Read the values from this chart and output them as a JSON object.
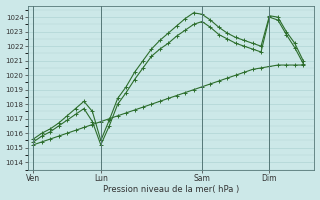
{
  "title": "",
  "xlabel": "Pression niveau de la mer( hPa )",
  "ylabel": "",
  "bg_color": "#cce8e8",
  "line_color": "#2d6e2d",
  "grid_color": "#b0d4d4",
  "ylim": [
    1013.5,
    1024.8
  ],
  "yticks": [
    1014,
    1015,
    1016,
    1017,
    1018,
    1019,
    1020,
    1021,
    1022,
    1023,
    1024
  ],
  "day_labels": [
    "Ven",
    "Lun",
    "Sam",
    "Dim"
  ],
  "day_positions": [
    0,
    48,
    120,
    168
  ],
  "xlim": [
    -4,
    200
  ],
  "lines": [
    {
      "x": [
        0,
        6,
        12,
        18,
        24,
        30,
        36,
        42,
        48,
        54,
        60,
        66,
        72,
        78,
        84,
        90,
        96,
        102,
        108,
        114,
        120,
        126,
        132,
        138,
        144,
        150,
        156,
        162,
        168,
        174,
        180,
        186,
        192
      ],
      "y": [
        1015.2,
        1015.4,
        1015.6,
        1015.8,
        1016.0,
        1016.2,
        1016.4,
        1016.6,
        1016.8,
        1017.0,
        1017.2,
        1017.4,
        1017.6,
        1017.8,
        1018.0,
        1018.2,
        1018.4,
        1018.6,
        1018.8,
        1019.0,
        1019.2,
        1019.4,
        1019.6,
        1019.8,
        1020.0,
        1020.2,
        1020.4,
        1020.5,
        1020.6,
        1020.7,
        1020.7,
        1020.7,
        1020.7
      ]
    },
    {
      "x": [
        0,
        6,
        12,
        18,
        24,
        30,
        36,
        42,
        48,
        54,
        60,
        66,
        72,
        78,
        84,
        90,
        96,
        102,
        108,
        114,
        120,
        126,
        132,
        138,
        144,
        150,
        156,
        162,
        168,
        174,
        180,
        186,
        192
      ],
      "y": [
        1015.4,
        1015.8,
        1016.1,
        1016.5,
        1016.9,
        1017.3,
        1017.7,
        1016.8,
        1015.2,
        1016.5,
        1018.0,
        1018.8,
        1019.7,
        1020.5,
        1021.3,
        1021.8,
        1022.2,
        1022.7,
        1023.1,
        1023.5,
        1023.7,
        1023.3,
        1022.8,
        1022.5,
        1022.2,
        1022.0,
        1021.8,
        1021.6,
        1024.0,
        1023.8,
        1022.8,
        1021.9,
        1020.8
      ]
    },
    {
      "x": [
        0,
        6,
        12,
        18,
        24,
        30,
        36,
        42,
        48,
        54,
        60,
        66,
        72,
        78,
        84,
        90,
        96,
        102,
        108,
        114,
        120,
        126,
        132,
        138,
        144,
        150,
        156,
        162,
        168,
        174,
        180,
        186,
        192
      ],
      "y": [
        1015.6,
        1016.0,
        1016.3,
        1016.7,
        1017.2,
        1017.7,
        1018.2,
        1017.5,
        1015.5,
        1016.9,
        1018.4,
        1019.2,
        1020.2,
        1021.0,
        1021.8,
        1022.4,
        1022.9,
        1023.4,
        1023.9,
        1024.3,
        1024.2,
        1023.8,
        1023.3,
        1022.9,
        1022.6,
        1022.4,
        1022.2,
        1022.0,
        1024.1,
        1024.0,
        1023.0,
        1022.2,
        1021.0
      ]
    }
  ]
}
